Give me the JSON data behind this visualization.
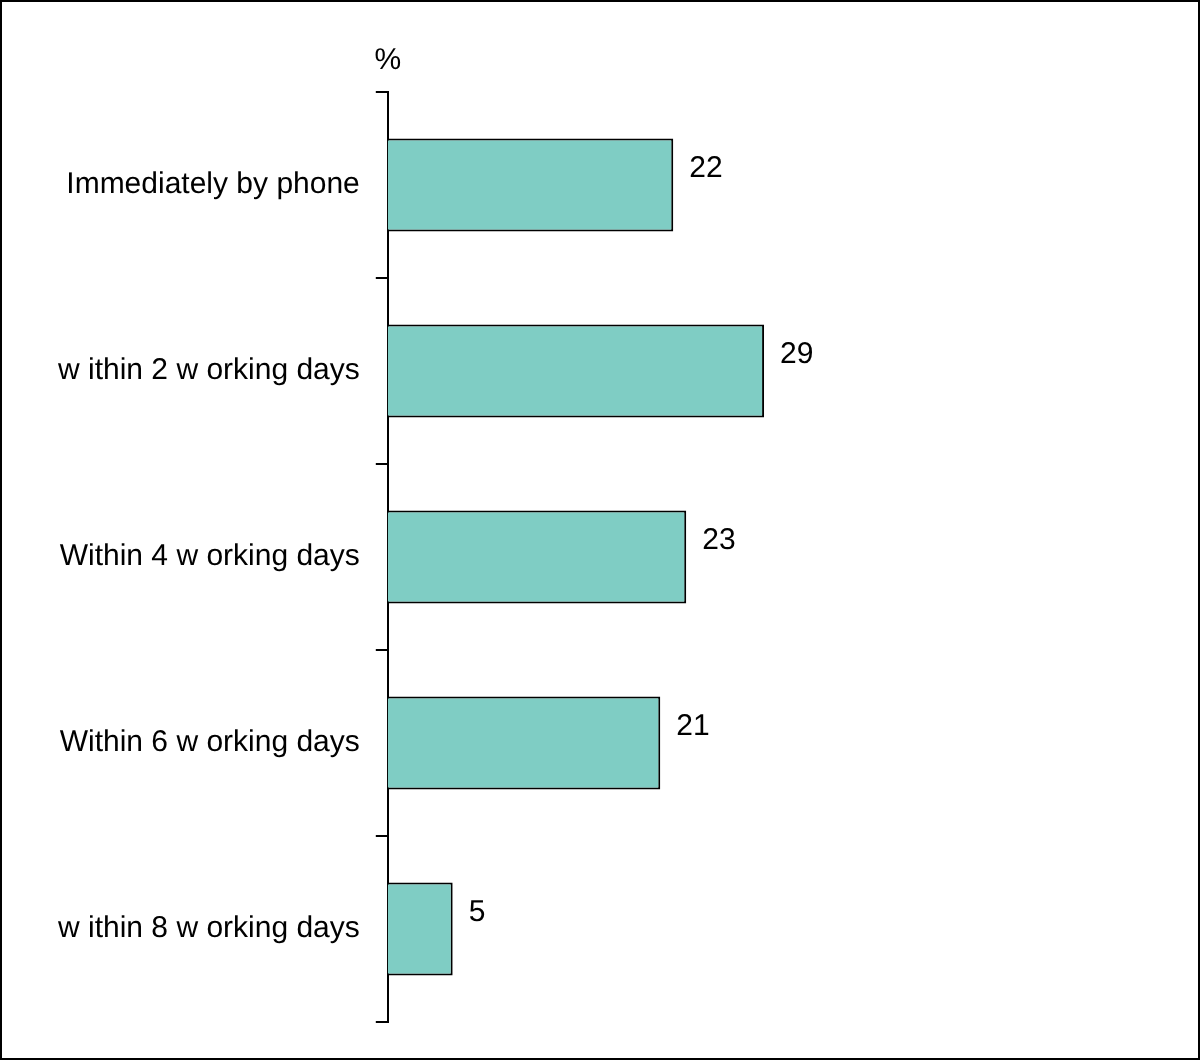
{
  "chart_data": {
    "type": "bar",
    "orientation": "horizontal",
    "title": "%",
    "categories": [
      "Immediately by phone",
      "w ithin 2 w orking days",
      "Within 4 w orking days",
      "Within 6 w orking days",
      "w ithin 8 w orking days"
    ],
    "values": [
      22,
      29,
      23,
      21,
      5
    ],
    "color": "#7fcdc4",
    "data_labels": true,
    "legend": false
  }
}
